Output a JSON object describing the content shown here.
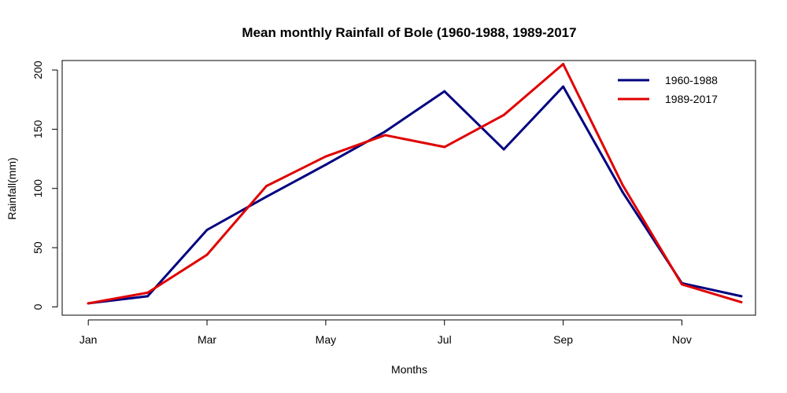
{
  "chart_data": {
    "type": "line",
    "title": "Mean monthly Rainfall of Bole (1960-1988, 1989-2017",
    "xlabel": "Months",
    "ylabel": "Rainfall(mm)",
    "x": [
      1,
      2,
      3,
      4,
      5,
      6,
      7,
      8,
      9,
      10,
      11,
      12
    ],
    "xticks": [
      {
        "pos": 1,
        "label": "Jan"
      },
      {
        "pos": 3,
        "label": "Mar"
      },
      {
        "pos": 5,
        "label": "May"
      },
      {
        "pos": 7,
        "label": "Jul"
      },
      {
        "pos": 9,
        "label": "Sep"
      },
      {
        "pos": 11,
        "label": "Nov"
      }
    ],
    "yticks": [
      0,
      50,
      100,
      150,
      200
    ],
    "xlim": [
      0.56,
      12.24
    ],
    "ylim": [
      -7,
      208
    ],
    "grid": false,
    "legend_position": "top-right",
    "series": [
      {
        "name": "1960-1988",
        "color": "#000080",
        "values": [
          3,
          9,
          65,
          93,
          120,
          148,
          182,
          133,
          186,
          97,
          20,
          9
        ]
      },
      {
        "name": "1989-2017",
        "color": "#e00000",
        "values": [
          3,
          12,
          44,
          102,
          127,
          145,
          135,
          162,
          205,
          103,
          19,
          4
        ]
      }
    ]
  }
}
